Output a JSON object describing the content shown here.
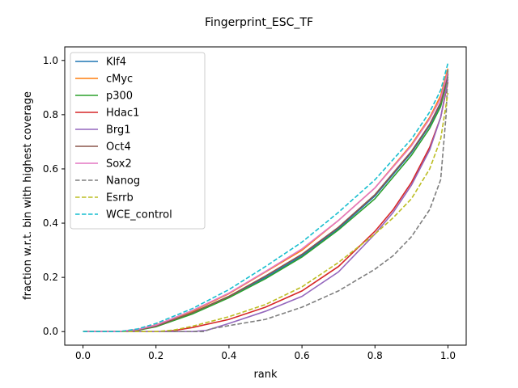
{
  "chart_data": {
    "type": "line",
    "title": "Fingerprint_ESC_TF",
    "xlabel": "rank",
    "ylabel": "fraction w.r.t. bin with highest coverage",
    "xlim": [
      -0.05,
      1.05
    ],
    "ylim": [
      -0.05,
      1.05
    ],
    "xticks": [
      0.0,
      0.2,
      0.4,
      0.6,
      0.8,
      1.0
    ],
    "yticks": [
      0.0,
      0.2,
      0.4,
      0.6,
      0.8,
      1.0
    ],
    "xtick_labels": [
      "0.0",
      "0.2",
      "0.4",
      "0.6",
      "0.8",
      "1.0"
    ],
    "ytick_labels": [
      "0.0",
      "0.2",
      "0.4",
      "0.6",
      "0.8",
      "1.0"
    ],
    "grid": false,
    "legend_position": "upper-left",
    "series": [
      {
        "name": "Klf4",
        "color": "#1f77b4",
        "dash": "solid",
        "points": [
          [
            0,
            0
          ],
          [
            0.1,
            0
          ],
          [
            0.15,
            0.005
          ],
          [
            0.2,
            0.02
          ],
          [
            0.3,
            0.07
          ],
          [
            0.4,
            0.13
          ],
          [
            0.5,
            0.2
          ],
          [
            0.6,
            0.28
          ],
          [
            0.7,
            0.38
          ],
          [
            0.8,
            0.5
          ],
          [
            0.9,
            0.66
          ],
          [
            0.95,
            0.76
          ],
          [
            0.98,
            0.84
          ],
          [
            1.0,
            0.95
          ]
        ]
      },
      {
        "name": "cMyc",
        "color": "#ff7f0e",
        "dash": "solid",
        "points": [
          [
            0,
            0
          ],
          [
            0.1,
            0
          ],
          [
            0.15,
            0.008
          ],
          [
            0.2,
            0.025
          ],
          [
            0.3,
            0.075
          ],
          [
            0.4,
            0.14
          ],
          [
            0.5,
            0.22
          ],
          [
            0.6,
            0.3
          ],
          [
            0.7,
            0.41
          ],
          [
            0.8,
            0.53
          ],
          [
            0.9,
            0.69
          ],
          [
            0.95,
            0.79
          ],
          [
            0.98,
            0.87
          ],
          [
            1.0,
            0.97
          ]
        ]
      },
      {
        "name": "p300",
        "color": "#2ca02c",
        "dash": "solid",
        "points": [
          [
            0,
            0
          ],
          [
            0.1,
            0
          ],
          [
            0.15,
            0.005
          ],
          [
            0.2,
            0.018
          ],
          [
            0.3,
            0.065
          ],
          [
            0.4,
            0.125
          ],
          [
            0.5,
            0.195
          ],
          [
            0.6,
            0.275
          ],
          [
            0.7,
            0.375
          ],
          [
            0.8,
            0.49
          ],
          [
            0.9,
            0.65
          ],
          [
            0.95,
            0.75
          ],
          [
            0.98,
            0.83
          ],
          [
            1.0,
            0.94
          ]
        ]
      },
      {
        "name": "Hdac1",
        "color": "#d62728",
        "dash": "solid",
        "points": [
          [
            0,
            0
          ],
          [
            0.22,
            0
          ],
          [
            0.25,
            0.004
          ],
          [
            0.3,
            0.015
          ],
          [
            0.4,
            0.045
          ],
          [
            0.5,
            0.09
          ],
          [
            0.6,
            0.15
          ],
          [
            0.7,
            0.24
          ],
          [
            0.8,
            0.37
          ],
          [
            0.85,
            0.45
          ],
          [
            0.9,
            0.55
          ],
          [
            0.95,
            0.68
          ],
          [
            0.98,
            0.79
          ],
          [
            1.0,
            0.92
          ]
        ]
      },
      {
        "name": "Brg1",
        "color": "#9467bd",
        "dash": "solid",
        "points": [
          [
            0,
            0
          ],
          [
            0.3,
            0
          ],
          [
            0.34,
            0.005
          ],
          [
            0.4,
            0.03
          ],
          [
            0.5,
            0.075
          ],
          [
            0.6,
            0.13
          ],
          [
            0.7,
            0.22
          ],
          [
            0.8,
            0.36
          ],
          [
            0.85,
            0.44
          ],
          [
            0.9,
            0.54
          ],
          [
            0.95,
            0.67
          ],
          [
            0.98,
            0.79
          ],
          [
            1.0,
            0.93
          ]
        ]
      },
      {
        "name": "Oct4",
        "color": "#8c564b",
        "dash": "solid",
        "points": [
          [
            0,
            0
          ],
          [
            0.1,
            0
          ],
          [
            0.15,
            0.006
          ],
          [
            0.2,
            0.02
          ],
          [
            0.3,
            0.07
          ],
          [
            0.4,
            0.13
          ],
          [
            0.5,
            0.205
          ],
          [
            0.6,
            0.285
          ],
          [
            0.7,
            0.385
          ],
          [
            0.8,
            0.505
          ],
          [
            0.9,
            0.665
          ],
          [
            0.95,
            0.765
          ],
          [
            0.98,
            0.845
          ],
          [
            1.0,
            0.95
          ]
        ]
      },
      {
        "name": "Sox2",
        "color": "#e377c2",
        "dash": "solid",
        "points": [
          [
            0,
            0
          ],
          [
            0.1,
            0
          ],
          [
            0.15,
            0.008
          ],
          [
            0.2,
            0.024
          ],
          [
            0.3,
            0.078
          ],
          [
            0.4,
            0.142
          ],
          [
            0.5,
            0.222
          ],
          [
            0.6,
            0.305
          ],
          [
            0.7,
            0.41
          ],
          [
            0.8,
            0.53
          ],
          [
            0.9,
            0.685
          ],
          [
            0.95,
            0.785
          ],
          [
            0.98,
            0.86
          ],
          [
            1.0,
            0.96
          ]
        ]
      },
      {
        "name": "Nanog",
        "color": "#7f7f7f",
        "dash": "dashed",
        "points": [
          [
            0,
            0
          ],
          [
            0.33,
            0
          ],
          [
            0.35,
            0.01
          ],
          [
            0.4,
            0.022
          ],
          [
            0.5,
            0.045
          ],
          [
            0.6,
            0.09
          ],
          [
            0.7,
            0.15
          ],
          [
            0.8,
            0.23
          ],
          [
            0.85,
            0.28
          ],
          [
            0.9,
            0.35
          ],
          [
            0.95,
            0.45
          ],
          [
            0.98,
            0.56
          ],
          [
            0.995,
            0.8
          ],
          [
            1.0,
            0.97
          ]
        ]
      },
      {
        "name": "Esrrb",
        "color": "#bcbd22",
        "dash": "dashed",
        "points": [
          [
            0,
            0
          ],
          [
            0.2,
            0
          ],
          [
            0.25,
            0.006
          ],
          [
            0.3,
            0.02
          ],
          [
            0.4,
            0.055
          ],
          [
            0.5,
            0.1
          ],
          [
            0.6,
            0.165
          ],
          [
            0.7,
            0.255
          ],
          [
            0.8,
            0.36
          ],
          [
            0.85,
            0.42
          ],
          [
            0.9,
            0.49
          ],
          [
            0.95,
            0.6
          ],
          [
            0.98,
            0.71
          ],
          [
            1.0,
            0.88
          ]
        ]
      },
      {
        "name": "WCE_control",
        "color": "#17becf",
        "dash": "dashed",
        "points": [
          [
            0,
            0
          ],
          [
            0.1,
            0
          ],
          [
            0.15,
            0.01
          ],
          [
            0.2,
            0.03
          ],
          [
            0.3,
            0.085
          ],
          [
            0.4,
            0.155
          ],
          [
            0.5,
            0.24
          ],
          [
            0.6,
            0.33
          ],
          [
            0.7,
            0.44
          ],
          [
            0.8,
            0.56
          ],
          [
            0.9,
            0.71
          ],
          [
            0.95,
            0.81
          ],
          [
            0.98,
            0.89
          ],
          [
            1.0,
            0.99
          ]
        ]
      }
    ]
  }
}
